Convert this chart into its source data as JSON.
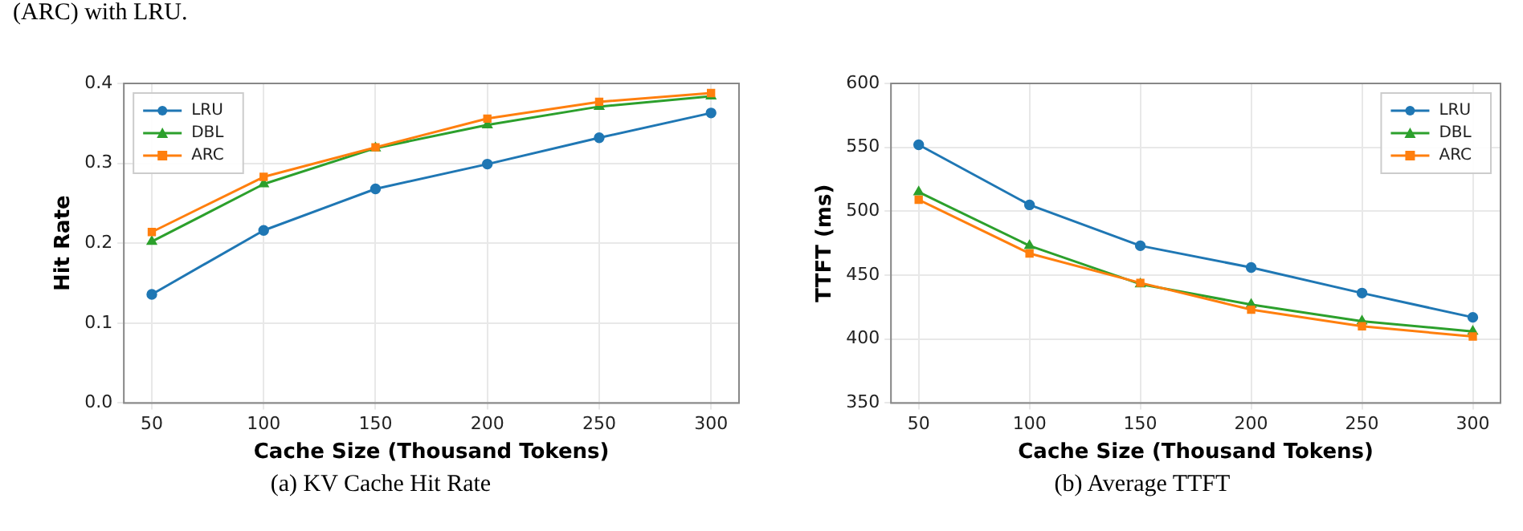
{
  "chart_data": [
    {
      "type": "line",
      "title": "(a) KV Cache Hit Rate",
      "annotations": [
        "(ARC) with LRU."
      ],
      "xlabel": "Cache Size (Thousand Tokens)",
      "ylabel": "Hit Rate",
      "x": [
        50,
        100,
        150,
        200,
        250,
        300
      ],
      "xlim": [
        37.5,
        312.5
      ],
      "xticks": [
        50,
        100,
        150,
        200,
        250,
        300
      ],
      "ylim": [
        0,
        0.4
      ],
      "yticks": [
        {
          "value": 0,
          "label": "0.0"
        },
        0.1,
        0.2,
        0.3,
        0.4
      ],
      "grid": true,
      "legend": "top left",
      "series": [
        {
          "name": "LRU",
          "color": "#1f77b4",
          "marker": "circle",
          "values": [
            0.136,
            0.216,
            0.268,
            0.299,
            0.332,
            0.363
          ]
        },
        {
          "name": "DBL",
          "color": "#2ca02c",
          "marker": "triangle",
          "values": [
            0.202,
            0.274,
            0.319,
            0.348,
            0.371,
            0.384
          ]
        },
        {
          "name": "ARC",
          "color": "#ff7f0e",
          "marker": "square",
          "values": [
            0.214,
            0.283,
            0.32,
            0.356,
            0.377,
            0.388
          ]
        }
      ]
    },
    {
      "type": "line",
      "title": "(b) Average TTFT",
      "xlabel": "Cache Size (Thousand Tokens)",
      "ylabel": "TTFT (ms)",
      "x": [
        50,
        100,
        150,
        200,
        250,
        300
      ],
      "xlim": [
        37.5,
        312.5
      ],
      "xticks": [
        50,
        100,
        150,
        200,
        250,
        300
      ],
      "ylim": [
        350,
        600
      ],
      "yticks": [
        350,
        400,
        450,
        500,
        550,
        600
      ],
      "grid": true,
      "legend": "top right",
      "series": [
        {
          "name": "LRU",
          "color": "#1f77b4",
          "marker": "circle",
          "values": [
            552,
            505,
            473,
            456,
            436,
            417
          ]
        },
        {
          "name": "DBL",
          "color": "#2ca02c",
          "marker": "triangle",
          "values": [
            515,
            473,
            443,
            427,
            414,
            406
          ]
        },
        {
          "name": "ARC",
          "color": "#ff7f0e",
          "marker": "square",
          "values": [
            509,
            467,
            444,
            423,
            410,
            402
          ]
        }
      ]
    }
  ]
}
